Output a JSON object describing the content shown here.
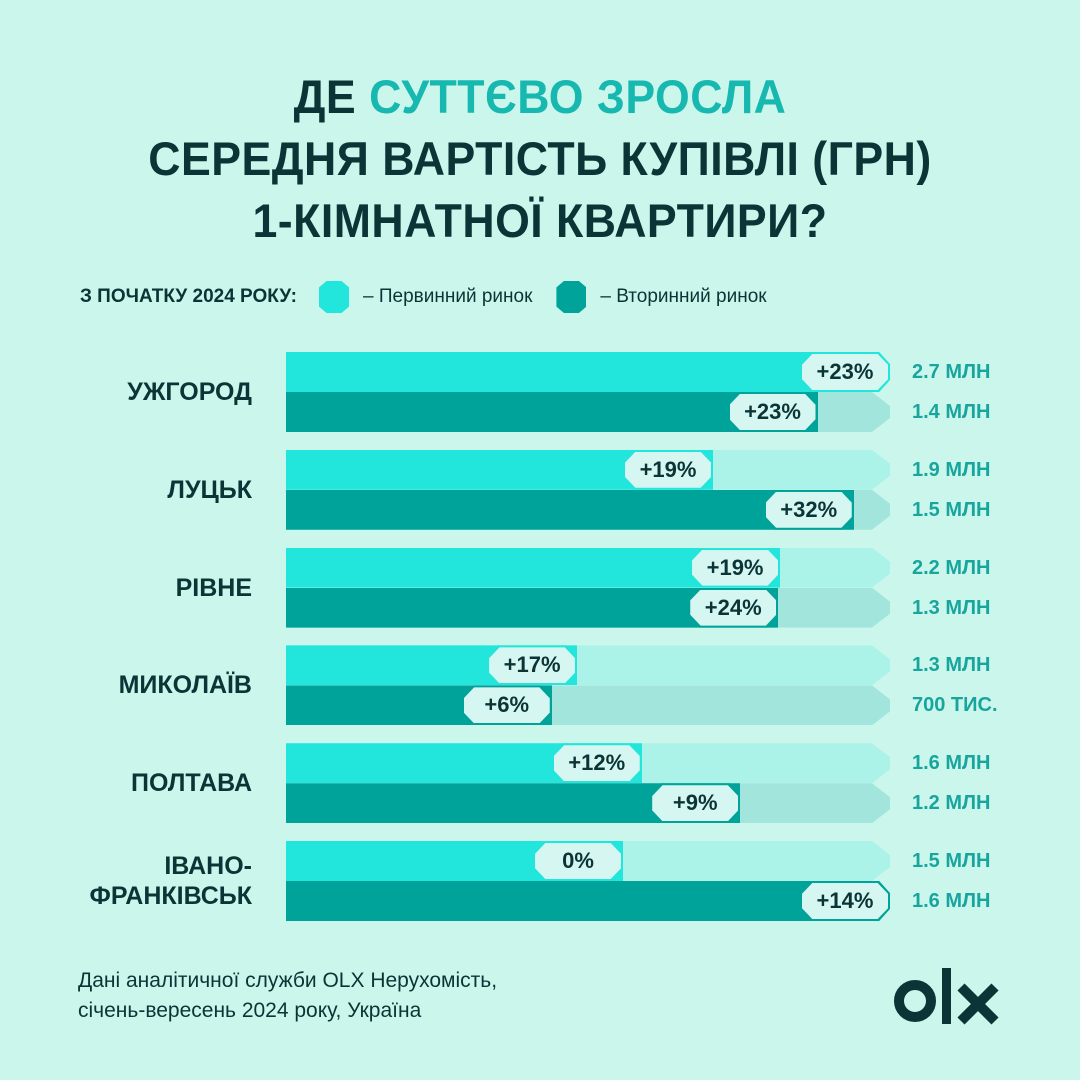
{
  "title": {
    "line1_a": "ДЕ ",
    "line1_highlight": "СУТТЄВО ЗРОСЛА",
    "line2": "СЕРЕДНЯ ВАРТІСТЬ КУПІВЛІ (ГРН)",
    "line3": "1-КІМНАТНОЇ КВАРТИРИ?"
  },
  "legend": {
    "label": "З ПОЧАТКУ 2024 РОКУ:",
    "primary": "– Первинний ринок",
    "secondary": "– Вторинний ринок"
  },
  "colors": {
    "background": "#cbf6ec",
    "primary": "#22e5dc",
    "secondary": "#00a39a",
    "primary_track": "#abf2e9",
    "secondary_track": "#a2e5dc",
    "highlight": "#17b8b0",
    "text": "#0b3436"
  },
  "chart_data": {
    "type": "bar",
    "orientation": "horizontal",
    "categories": [
      "УЖГОРОД",
      "ЛУЦЬК",
      "РІВНЕ",
      "МИКОЛАЇВ",
      "ПОЛТАВА",
      "ІВАНО-ФРАНКІВСЬК"
    ],
    "series": [
      {
        "name": "Первинний ринок",
        "change_labels": [
          "+23%",
          "+19%",
          "+19%",
          "+17%",
          "+12%",
          "0%"
        ],
        "price_labels": [
          "2.7 МЛН",
          "1.9 МЛН",
          "2.2 МЛН",
          "1.3 МЛН",
          "1.6 МЛН",
          "1.5 МЛН"
        ],
        "fill_fraction": [
          1.0,
          0.707,
          0.818,
          0.482,
          0.589,
          0.558
        ]
      },
      {
        "name": "Вторинний ринок",
        "change_labels": [
          "+23%",
          "+32%",
          "+24%",
          "+6%",
          "+9%",
          "+14%"
        ],
        "price_labels": [
          "1.4 МЛН",
          "1.5 МЛН",
          "1.3 МЛН",
          "700 ТИС.",
          "1.2 МЛН",
          "1.6 МЛН"
        ],
        "fill_fraction": [
          0.88,
          0.94,
          0.815,
          0.44,
          0.752,
          1.0
        ]
      }
    ]
  },
  "source": {
    "line1": "Дані аналітичної служби OLX Нерухомість,",
    "line2": "січень-вересень 2024 року, Україна"
  },
  "logo": "OLX"
}
